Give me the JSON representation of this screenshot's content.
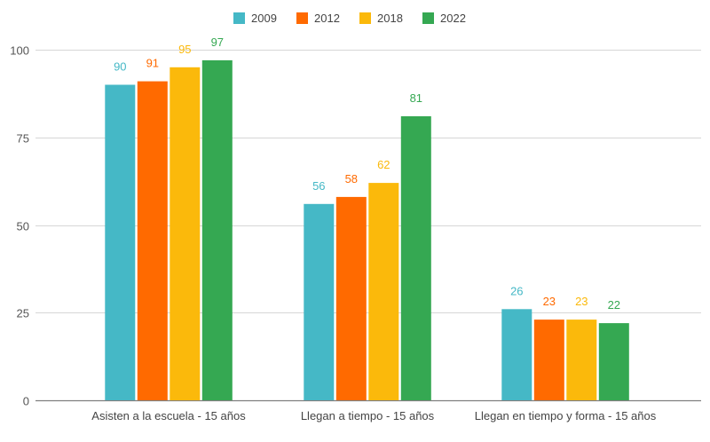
{
  "chart_data": {
    "type": "bar",
    "categories": [
      "Asisten a la escuela - 15 años",
      "Llegan a tiempo - 15 años",
      "Llegan en tiempo y forma - 15 años"
    ],
    "series": [
      {
        "name": "2009",
        "color": "#45b8c6",
        "values": [
          90,
          56,
          26
        ]
      },
      {
        "name": "2012",
        "color": "#ff6a00",
        "values": [
          91,
          58,
          23
        ]
      },
      {
        "name": "2018",
        "color": "#fbb90b",
        "values": [
          95,
          62,
          23
        ]
      },
      {
        "name": "2022",
        "color": "#35a852",
        "values": [
          97,
          81,
          22
        ]
      }
    ],
    "ylim": [
      0,
      100
    ],
    "yticks": [
      0,
      25,
      50,
      75,
      100
    ],
    "grid": true,
    "legend_position": "top-center",
    "title": "",
    "xlabel": "",
    "ylabel": ""
  }
}
